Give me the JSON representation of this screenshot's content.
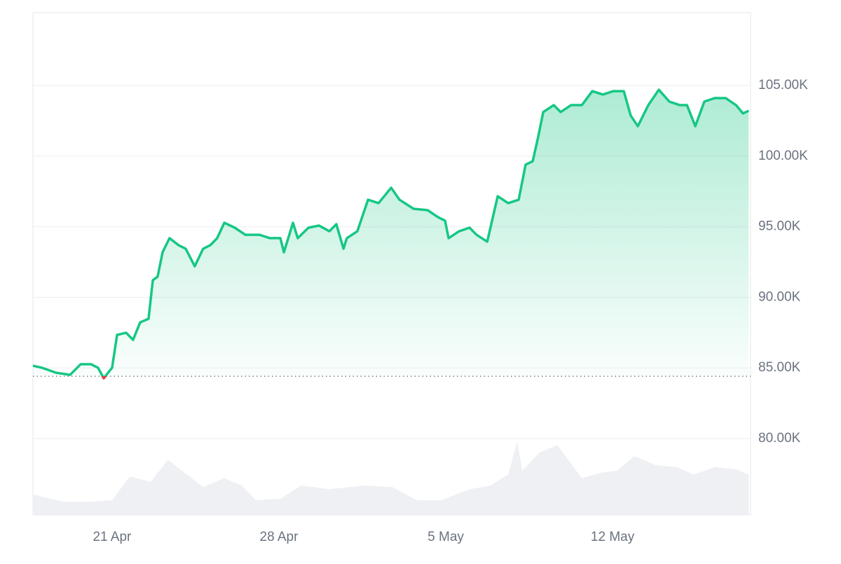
{
  "chart_data": {
    "type": "line",
    "color": "#16c784",
    "below_color": "#ea3943",
    "reference_value": 84410,
    "x": [
      -3.32,
      -2.94,
      -2.35,
      -1.76,
      -1.32,
      -0.88,
      -0.59,
      -0.35,
      0,
      0.21,
      0.59,
      0.88,
      1.18,
      1.53,
      1.71,
      1.91,
      2.12,
      2.41,
      2.79,
      3.09,
      3.47,
      3.82,
      4.12,
      4.41,
      4.71,
      5.15,
      5.59,
      6.18,
      6.62,
      7.06,
      7.21,
      7.59,
      7.79,
      8.24,
      8.68,
      9.12,
      9.41,
      9.71,
      9.85,
      10.29,
      10.74,
      11.18,
      11.71,
      12.06,
      12.65,
      13.24,
      13.68,
      13.97,
      14.12,
      14.56,
      15,
      15.29,
      15.74,
      16.18,
      16.62,
      17.06,
      17.35,
      17.65,
      17.88,
      18.09,
      18.53,
      18.82,
      19.26,
      19.71,
      20.15,
      20.59,
      21.03,
      21.47,
      21.76,
      22.06,
      22.5,
      22.94,
      23.38,
      23.82,
      24.12,
      24.47,
      24.85,
      25.29,
      25.74,
      26.18,
      26.47,
      26.71
    ],
    "values": [
      85160,
      85010,
      84660,
      84510,
      85260,
      85260,
      85010,
      84270,
      85010,
      87340,
      87490,
      86990,
      88230,
      88480,
      91210,
      91460,
      93190,
      94190,
      93690,
      93440,
      92200,
      93440,
      93690,
      94190,
      95280,
      94930,
      94430,
      94430,
      94190,
      94190,
      93190,
      95280,
      94190,
      94930,
      95080,
      94680,
      95180,
      93440,
      94190,
      94680,
      96910,
      96670,
      97760,
      96910,
      96270,
      96170,
      95670,
      95430,
      94190,
      94680,
      94930,
      94430,
      93940,
      97160,
      96670,
      96910,
      99390,
      99640,
      101380,
      103120,
      103610,
      103120,
      103610,
      103610,
      104600,
      104360,
      104600,
      104600,
      102870,
      102120,
      103610,
      104700,
      103860,
      103610,
      103610,
      102120,
      103860,
      104110,
      104110,
      103610,
      103020,
      103210
    ],
    "volume": {
      "color": "#eef0f3",
      "x": [
        -3.32,
        -2.06,
        -0.88,
        0,
        0.74,
        1.62,
        2.35,
        2.94,
        3.82,
        4.71,
        5.44,
        6.03,
        7.06,
        7.94,
        9.12,
        10.59,
        11.76,
        12.79,
        13.82,
        15,
        15.88,
        16.62,
        17,
        17.21,
        17.94,
        18.68,
        19.71,
        20.59,
        21.18,
        21.91,
        22.79,
        23.68,
        24.41,
        25.29,
        26.18,
        26.71
      ],
      "values": [
        28,
        18,
        18,
        20,
        52,
        45,
        75,
        60,
        38,
        50,
        40,
        20,
        22,
        40,
        35,
        40,
        38,
        20,
        20,
        35,
        40,
        55,
        100,
        60,
        85,
        95,
        50,
        58,
        60,
        80,
        68,
        65,
        55,
        65,
        62,
        55
      ]
    },
    "xlim": [
      -3.32,
      26.79
    ],
    "xticks": [
      {
        "value": 0,
        "label": "21 Apr"
      },
      {
        "value": 7,
        "label": "28 Apr"
      },
      {
        "value": 14,
        "label": "5 May"
      },
      {
        "value": 21,
        "label": "12 May"
      }
    ],
    "ylim": [
      74590,
      110160
    ],
    "yticks": [
      {
        "value": 80000,
        "label": "80.00K"
      },
      {
        "value": 85000,
        "label": "85.00K"
      },
      {
        "value": 90000,
        "label": "90.00K"
      },
      {
        "value": 95000,
        "label": "95.00K"
      },
      {
        "value": 100000,
        "label": "100.00K"
      },
      {
        "value": 105000,
        "label": "105.00K"
      }
    ],
    "grid": true
  }
}
